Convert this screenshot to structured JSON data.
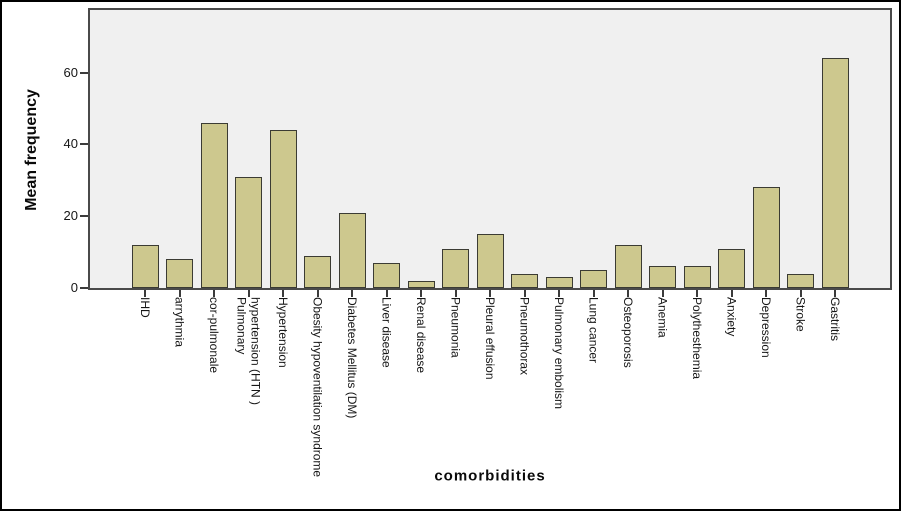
{
  "chart_data": {
    "type": "bar",
    "title": "",
    "xlabel": "comorbidities",
    "ylabel": "Mean frequency",
    "categories": [
      "IHD",
      "arrythmia",
      "cor-pulmonale",
      "Pulmonary\nhypertension (HTN )",
      "Hypertension",
      "Obesity hypoventilation syndrome",
      "Diabetes Mellitus (DM)",
      "Liver disease",
      "Renal disease",
      "Pneumonia",
      "Pleural effusion",
      "Pneumothorax",
      "Pulmonary embolism",
      "Lung cancer",
      "Osteoporosis",
      "Anemia",
      "Polythesthemia",
      "Anxiety",
      "Depression",
      "Stroke",
      "Gastritis"
    ],
    "values": [
      12,
      8,
      46,
      31,
      44,
      9,
      21,
      7,
      2,
      11,
      15,
      4,
      3,
      5,
      12,
      6,
      6,
      11,
      28,
      4,
      64
    ],
    "yticks": [
      0,
      20,
      40,
      60
    ],
    "ylim": [
      0,
      78
    ],
    "grid": false,
    "legend": "none",
    "colors": {
      "bar_fill": "#cdc88e",
      "bar_border": "#3b3b33",
      "plot_bg": "#f0f0f0",
      "axis": "#4a4a4a",
      "text": "#161616",
      "figure_bg": "#ffffff",
      "frame": "#000000"
    }
  }
}
